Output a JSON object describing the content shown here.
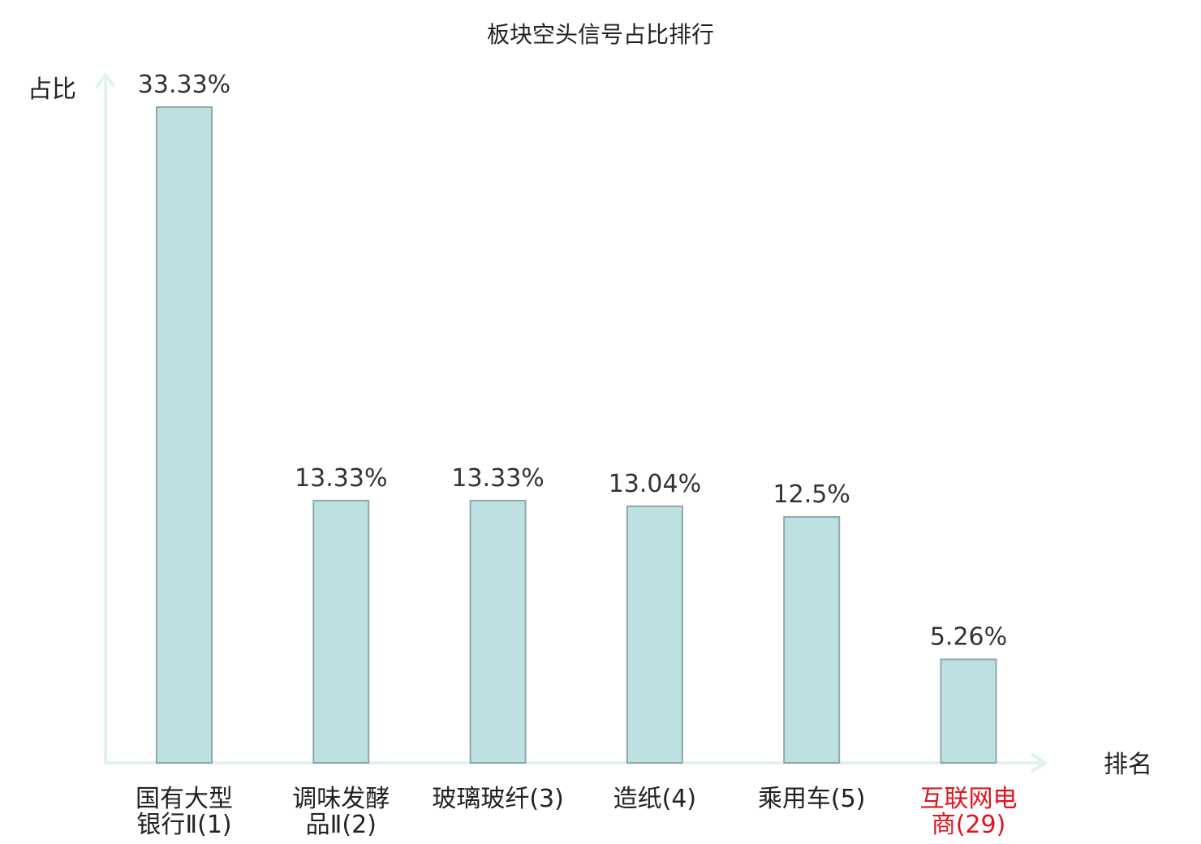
{
  "chart_data": {
    "type": "bar",
    "title": "板块空头信号占比排行",
    "ylabel": "占比",
    "xlabel": "排名",
    "ylim": [
      0,
      35
    ],
    "grid": false,
    "legend": "none",
    "categories": [
      [
        "国有大型",
        "银行Ⅱ(1)"
      ],
      [
        "调味发酵",
        "品Ⅱ(2)"
      ],
      [
        "玻璃玻纤(3)"
      ],
      [
        "造纸(4)"
      ],
      [
        "乘用车(5)"
      ],
      [
        "互联网电",
        "商(29)"
      ]
    ],
    "values": [
      33.33,
      13.33,
      13.33,
      13.04,
      12.5,
      5.26
    ],
    "value_labels": [
      "33.33%",
      "13.33%",
      "13.33%",
      "13.04%",
      "12.5%",
      "5.26%"
    ],
    "highlight_index": 5,
    "colors": {
      "bar_fill": "#bde0e2",
      "bar_stroke": "#8fa9ab",
      "axis": "#e0f2ef",
      "highlight_text": "#e0141e"
    }
  }
}
